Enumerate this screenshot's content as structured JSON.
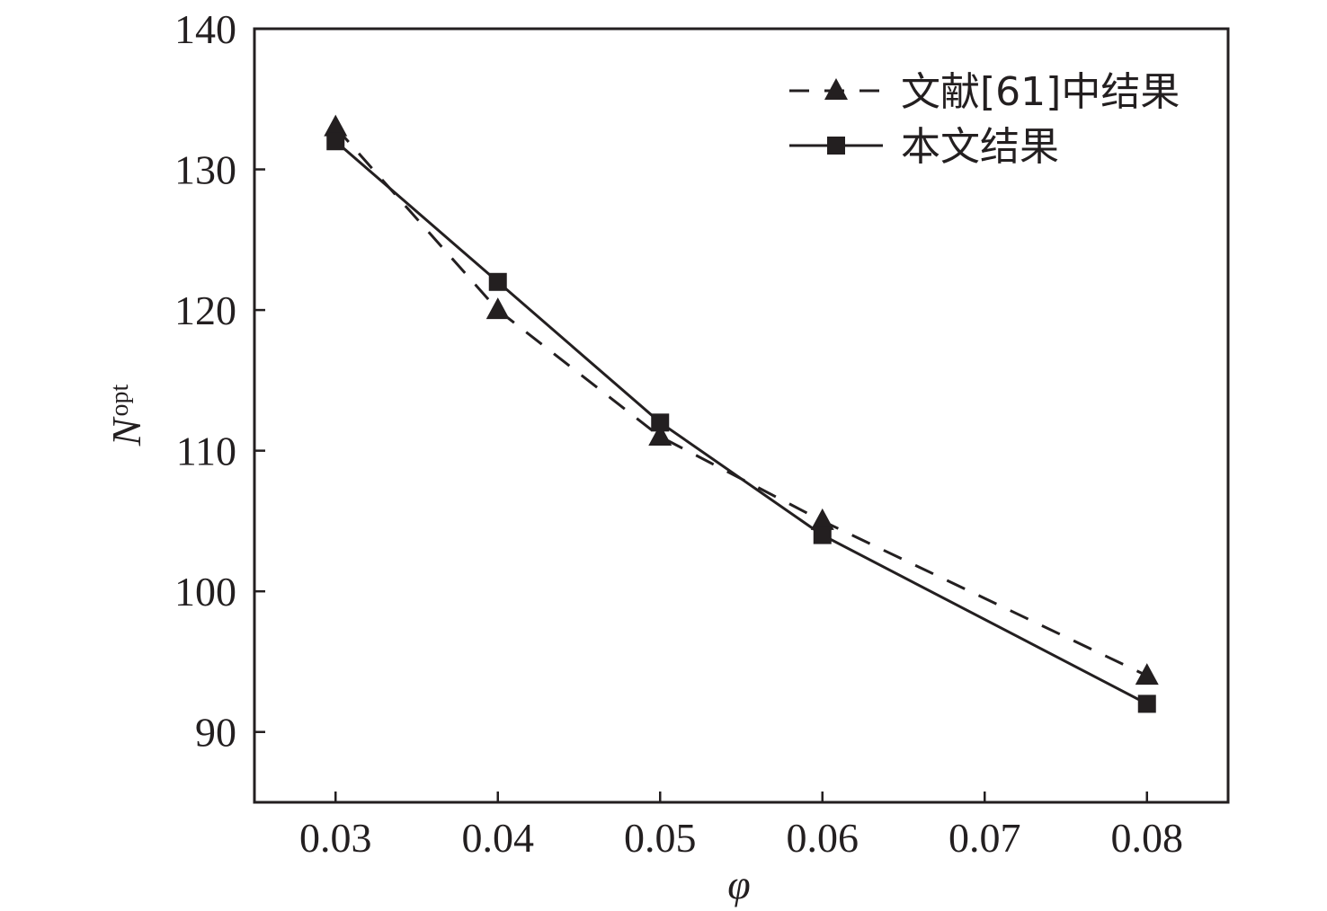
{
  "chart_data": {
    "type": "line",
    "title": "",
    "xlabel": "φ",
    "ylabel_main": "N",
    "ylabel_sub": "opt",
    "xlim": [
      0.025,
      0.085
    ],
    "ylim": [
      85,
      140
    ],
    "x_ticks": [
      0.03,
      0.04,
      0.05,
      0.06,
      0.07,
      0.08
    ],
    "x_tick_labels": [
      "0.03",
      "0.04",
      "0.05",
      "0.06",
      "0.07",
      "0.08"
    ],
    "y_ticks": [
      90,
      100,
      110,
      120,
      130,
      140
    ],
    "y_tick_labels": [
      "90",
      "100",
      "110",
      "120",
      "130",
      "140"
    ],
    "grid": false,
    "legend_position": "top-right",
    "colors": {
      "ink": "#231f20"
    },
    "series": [
      {
        "name": "文献[61]中结果",
        "marker": "triangle",
        "line_style": "dashed",
        "x": [
          0.03,
          0.04,
          0.05,
          0.06,
          0.08
        ],
        "y": [
          133,
          120,
          111,
          105,
          94
        ]
      },
      {
        "name": "本文结果",
        "marker": "square",
        "line_style": "solid",
        "x": [
          0.03,
          0.04,
          0.05,
          0.06,
          0.08
        ],
        "y": [
          132,
          122,
          112,
          104,
          92
        ]
      }
    ]
  }
}
